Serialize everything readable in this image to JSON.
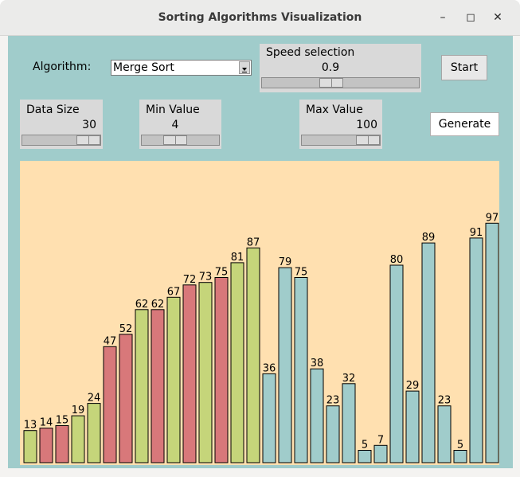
{
  "window": {
    "title": "Sorting Algorithms Visualization",
    "min_glyph": "–",
    "max_glyph": "◻",
    "close_glyph": "✕"
  },
  "controls": {
    "algorithm_label": "Algorithm:",
    "algorithm_value": "Merge Sort",
    "speed": {
      "label": "Speed selection",
      "value": "0.9"
    },
    "start_label": "Start",
    "data_size": {
      "label": "Data Size",
      "value": "30"
    },
    "min_value": {
      "label": "Min Value",
      "value": "4"
    },
    "max_value": {
      "label": "Max Value",
      "value": "100"
    },
    "generate_label": "Generate"
  },
  "colors": {
    "sorted": "#c5d57a",
    "merging": "#d8787a",
    "unsorted": "#a0cccb",
    "canvas": "#ffe0b0"
  },
  "chart_data": {
    "type": "bar",
    "values": [
      13,
      14,
      15,
      19,
      24,
      47,
      52,
      62,
      62,
      67,
      72,
      73,
      75,
      81,
      87,
      36,
      79,
      75,
      38,
      23,
      32,
      5,
      7,
      80,
      29,
      89,
      23,
      5,
      91,
      97
    ],
    "states": [
      "s",
      "m",
      "m",
      "s",
      "s",
      "m",
      "m",
      "s",
      "m",
      "s",
      "m",
      "s",
      "m",
      "s",
      "s",
      "u",
      "u",
      "u",
      "u",
      "u",
      "u",
      "u",
      "u",
      "u",
      "u",
      "u",
      "u",
      "u",
      "u",
      "u"
    ],
    "ylim": [
      0,
      100
    ]
  }
}
